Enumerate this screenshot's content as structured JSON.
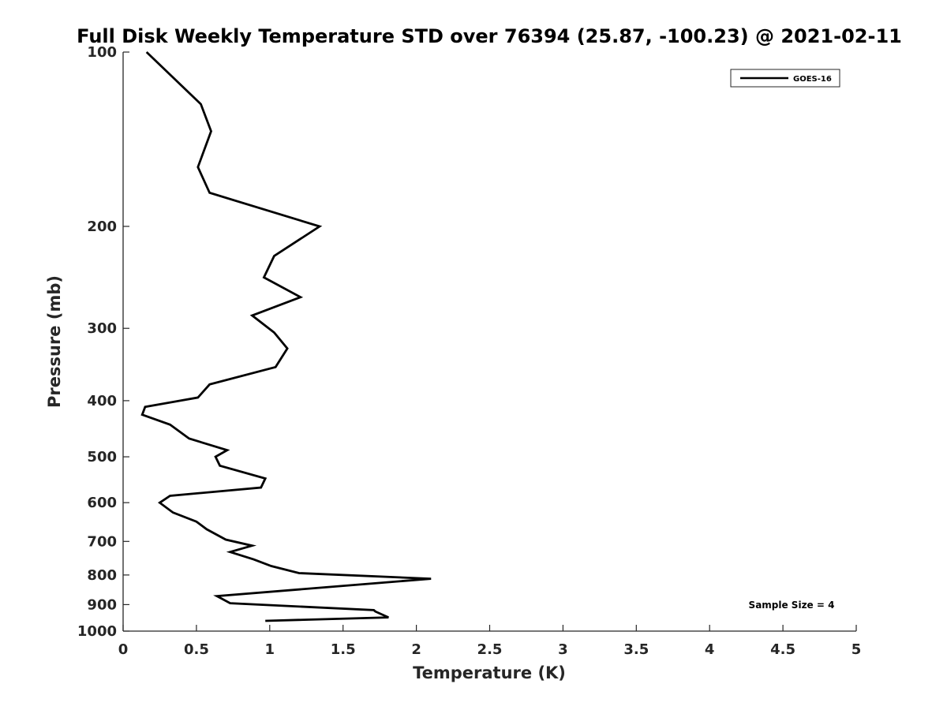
{
  "chart_data": {
    "type": "line",
    "title": "Full Disk Weekly Temperature STD over 76394 (25.87, -100.23) @ 2021-02-11",
    "xlabel": "Temperature (K)",
    "ylabel": "Pressure (mb)",
    "xlim": [
      0,
      5
    ],
    "ylim": [
      100,
      1000
    ],
    "y_scale": "log",
    "y_reversed": true,
    "x_ticks": [
      "0",
      "0.5",
      "1",
      "1.5",
      "2",
      "2.5",
      "3",
      "3.5",
      "4",
      "4.5",
      "5"
    ],
    "y_ticks": [
      "100",
      "200",
      "300",
      "400",
      "500",
      "600",
      "700",
      "800",
      "900",
      "1000"
    ],
    "grid": false,
    "legend_position": "top-right",
    "series": [
      {
        "name": "GOES-16",
        "color": "#000000",
        "x": [
          0.16,
          0.53,
          0.6,
          0.51,
          0.59,
          1.34,
          1.03,
          0.96,
          1.21,
          0.88,
          1.03,
          1.12,
          1.04,
          0.59,
          0.51,
          0.15,
          0.13,
          0.32,
          0.45,
          0.71,
          0.63,
          0.66,
          0.97,
          0.94,
          0.32,
          0.25,
          0.34,
          0.5,
          0.57,
          0.7,
          0.88,
          0.73,
          0.89,
          1.01,
          1.2,
          2.1,
          0.64,
          0.73,
          1.71,
          1.72,
          1.81,
          0.97
        ],
        "y": [
          100,
          123,
          137,
          158,
          175,
          200,
          225,
          245,
          265,
          285,
          305,
          325,
          350,
          375,
          395,
          410,
          423,
          440,
          465,
          487,
          500,
          518,
          545,
          565,
          584,
          600,
          624,
          647,
          667,
          695,
          712,
          730,
          752,
          772,
          794,
          812,
          870,
          895,
          920,
          925,
          947,
          960
        ]
      }
    ],
    "annotation": "Sample Size = 4"
  }
}
